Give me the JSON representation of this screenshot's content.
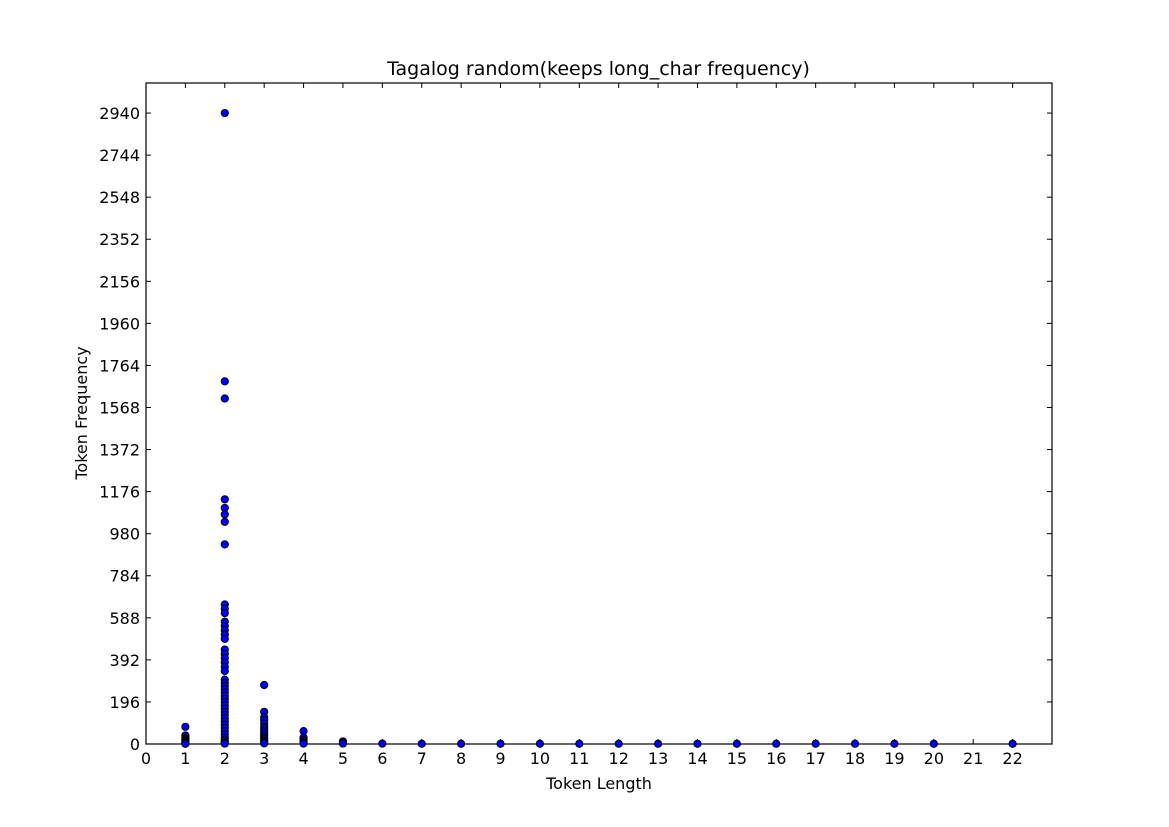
{
  "chart_data": {
    "type": "scatter",
    "title": "Tagalog random(keeps long_char frequency)",
    "xlabel": "Token Length",
    "ylabel": "Token Frequency",
    "xlim": [
      0,
      23
    ],
    "ylim": [
      0,
      3080
    ],
    "x_ticks": [
      0,
      1,
      2,
      3,
      4,
      5,
      6,
      7,
      8,
      9,
      10,
      11,
      12,
      13,
      14,
      15,
      16,
      17,
      18,
      19,
      20,
      21,
      22
    ],
    "y_ticks": [
      0,
      196,
      392,
      588,
      784,
      980,
      1176,
      1372,
      1568,
      1764,
      1960,
      2156,
      2352,
      2548,
      2744,
      2940
    ],
    "grid": false,
    "marker_color": "#0000ff",
    "marker_edge_color": "#000000",
    "series": [
      {
        "points": [
          [
            1,
            80
          ],
          [
            1,
            40
          ],
          [
            1,
            30
          ],
          [
            1,
            25
          ],
          [
            1,
            20
          ],
          [
            1,
            15
          ],
          [
            1,
            12
          ],
          [
            1,
            8
          ],
          [
            1,
            5
          ],
          [
            1,
            3
          ],
          [
            1,
            2
          ],
          [
            1,
            1
          ],
          [
            2,
            2940
          ],
          [
            2,
            1690
          ],
          [
            2,
            1610
          ],
          [
            2,
            1140
          ],
          [
            2,
            1100
          ],
          [
            2,
            1070
          ],
          [
            2,
            1035
          ],
          [
            2,
            930
          ],
          [
            2,
            650
          ],
          [
            2,
            630
          ],
          [
            2,
            610
          ],
          [
            2,
            570
          ],
          [
            2,
            550
          ],
          [
            2,
            530
          ],
          [
            2,
            510
          ],
          [
            2,
            490
          ],
          [
            2,
            440
          ],
          [
            2,
            420
          ],
          [
            2,
            400
          ],
          [
            2,
            380
          ],
          [
            2,
            360
          ],
          [
            2,
            340
          ],
          [
            2,
            300
          ],
          [
            2,
            285
          ],
          [
            2,
            270
          ],
          [
            2,
            255
          ],
          [
            2,
            240
          ],
          [
            2,
            225
          ],
          [
            2,
            210
          ],
          [
            2,
            195
          ],
          [
            2,
            180
          ],
          [
            2,
            165
          ],
          [
            2,
            150
          ],
          [
            2,
            135
          ],
          [
            2,
            120
          ],
          [
            2,
            105
          ],
          [
            2,
            90
          ],
          [
            2,
            75
          ],
          [
            2,
            60
          ],
          [
            2,
            45
          ],
          [
            2,
            30
          ],
          [
            2,
            20
          ],
          [
            2,
            10
          ],
          [
            2,
            5
          ],
          [
            2,
            2
          ],
          [
            3,
            275
          ],
          [
            3,
            150
          ],
          [
            3,
            125
          ],
          [
            3,
            110
          ],
          [
            3,
            95
          ],
          [
            3,
            80
          ],
          [
            3,
            70
          ],
          [
            3,
            60
          ],
          [
            3,
            50
          ],
          [
            3,
            40
          ],
          [
            3,
            30
          ],
          [
            3,
            22
          ],
          [
            3,
            15
          ],
          [
            3,
            8
          ],
          [
            3,
            3
          ],
          [
            4,
            60
          ],
          [
            4,
            30
          ],
          [
            4,
            20
          ],
          [
            4,
            12
          ],
          [
            4,
            6
          ],
          [
            4,
            2
          ],
          [
            5,
            12
          ],
          [
            5,
            6
          ],
          [
            5,
            2
          ],
          [
            6,
            2
          ],
          [
            7,
            1
          ],
          [
            8,
            1
          ],
          [
            9,
            1
          ],
          [
            10,
            1
          ],
          [
            11,
            1
          ],
          [
            12,
            1
          ],
          [
            13,
            1
          ],
          [
            14,
            1
          ],
          [
            15,
            1
          ],
          [
            16,
            1
          ],
          [
            17,
            1
          ],
          [
            18,
            1
          ],
          [
            19,
            1
          ],
          [
            20,
            1
          ],
          [
            22,
            1
          ]
        ]
      }
    ]
  }
}
